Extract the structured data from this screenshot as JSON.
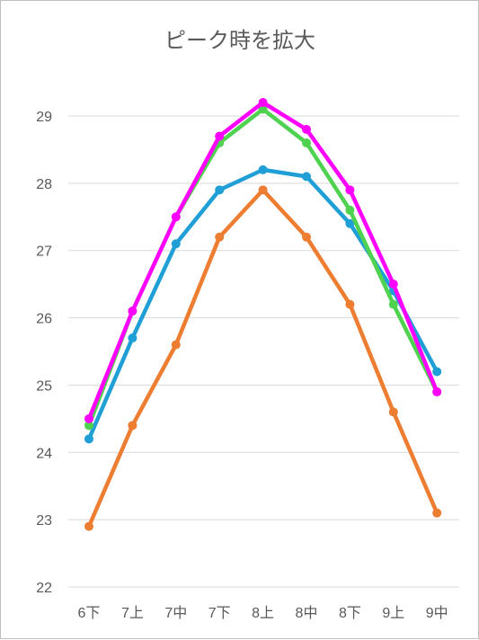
{
  "chart_data": {
    "type": "line",
    "title": "ピーク時を拡大",
    "xlabel": "",
    "ylabel": "",
    "categories": [
      "6下",
      "7上",
      "7中",
      "7下",
      "8上",
      "8中",
      "8下",
      "9上",
      "9中"
    ],
    "ylim": [
      22,
      29
    ],
    "yticks": [
      22,
      23,
      24,
      25,
      26,
      27,
      28,
      29
    ],
    "grid": true,
    "legend": "none",
    "series": [
      {
        "color": "#ED7D31",
        "values": [
          22.9,
          24.4,
          25.6,
          27.2,
          27.9,
          27.2,
          26.2,
          24.6,
          23.1
        ]
      },
      {
        "color": "#1F9FD6",
        "values": [
          24.2,
          25.7,
          27.1,
          27.9,
          28.2,
          28.1,
          27.4,
          26.4,
          25.2
        ]
      },
      {
        "color": "#4FD24F",
        "values": [
          24.4,
          26.1,
          27.5,
          28.6,
          29.1,
          28.6,
          27.6,
          26.2,
          24.9
        ]
      },
      {
        "color": "#FF00FF",
        "values": [
          24.5,
          26.1,
          27.5,
          28.7,
          29.2,
          28.8,
          27.9,
          26.5,
          24.9
        ]
      }
    ]
  }
}
